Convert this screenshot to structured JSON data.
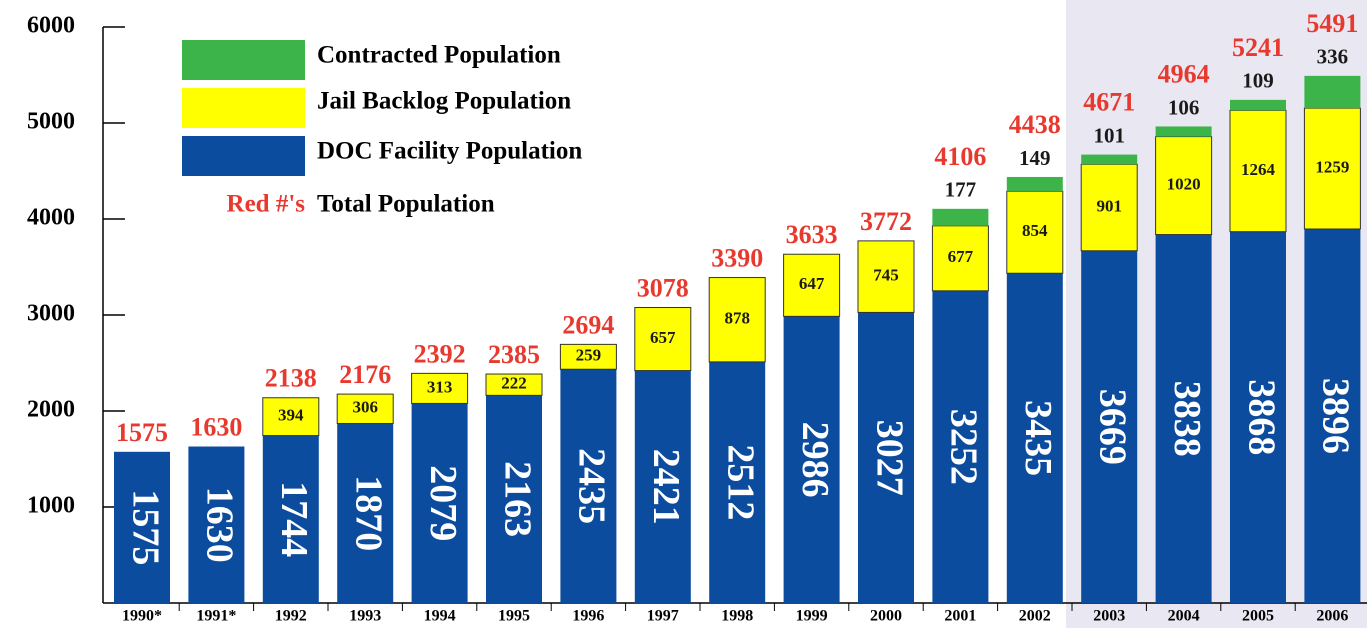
{
  "chart_data": {
    "type": "stacked_bar",
    "categories": [
      "1990*",
      "1991*",
      "1992",
      "1993",
      "1994",
      "1995",
      "1996",
      "1997",
      "1998",
      "1999",
      "2000",
      "2001",
      "2002",
      "2003",
      "2004",
      "2005",
      "2006"
    ],
    "series": [
      {
        "name": "DOC Facility Population",
        "color": "#0b4c9e",
        "values": [
          1575,
          1630,
          1744,
          1870,
          2079,
          2163,
          2435,
          2421,
          2512,
          2986,
          3027,
          3252,
          3435,
          3669,
          3838,
          3868,
          3896
        ]
      },
      {
        "name": "Jail Backlog Population",
        "color": "#ffff00",
        "values": [
          null,
          null,
          394,
          306,
          313,
          222,
          259,
          657,
          878,
          647,
          745,
          677,
          854,
          901,
          1020,
          1264,
          1259
        ]
      },
      {
        "name": "Contracted Population",
        "color": "#3cb44a",
        "values": [
          null,
          null,
          null,
          null,
          null,
          null,
          null,
          null,
          null,
          null,
          null,
          177,
          149,
          101,
          106,
          109,
          336
        ]
      }
    ],
    "totals": [
      1575,
      1630,
      2138,
      2176,
      2392,
      2385,
      2694,
      3078,
      3390,
      3633,
      3772,
      4106,
      4438,
      4671,
      4964,
      5241,
      5491
    ],
    "totals_marker": "Red #'s",
    "totals_name": "Total Population",
    "totals_color": "#e8392f",
    "ylim": [
      0,
      6000
    ],
    "yticks": [
      1000,
      2000,
      3000,
      4000,
      5000,
      6000
    ]
  }
}
